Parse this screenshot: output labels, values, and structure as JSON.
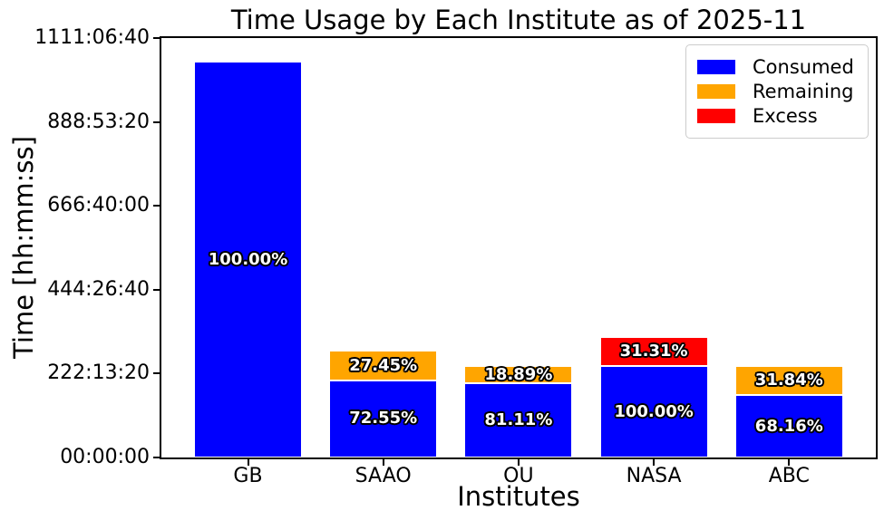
{
  "chart_data": {
    "type": "bar",
    "stacked": true,
    "title": "Time Usage by Each Institute as of 2025-11",
    "xlabel": "Institutes",
    "ylabel": "Time [hh:mm:ss]",
    "categories": [
      "GB",
      "SAAO",
      "OU",
      "NASA",
      "ABC"
    ],
    "y_tick_labels": [
      "00:00:00",
      "222:13:20",
      "444:26:40",
      "666:40:00",
      "888:53:20",
      "1111:06:40"
    ],
    "y_axis_max_seconds": 4000000,
    "grid": false,
    "legend_position": "upper right",
    "series": [
      {
        "name": "Consumed",
        "color": "#0000ff",
        "values_seconds": [
          3775000,
          737000,
          707600,
          872400,
          594600
        ],
        "bar_labels": [
          "100.00%",
          "72.55%",
          "81.11%",
          "100.00%",
          "68.16%"
        ]
      },
      {
        "name": "Remaining",
        "color": "#ffa500",
        "values_seconds": [
          0,
          279000,
          164800,
          0,
          277700
        ],
        "bar_labels": [
          "",
          "27.45%",
          "18.89%",
          "",
          "31.84%"
        ]
      },
      {
        "name": "Excess",
        "color": "#ff0000",
        "values_seconds": [
          0,
          0,
          0,
          273100,
          0
        ],
        "bar_labels": [
          "",
          "",
          "",
          "31.31%",
          ""
        ]
      }
    ]
  }
}
